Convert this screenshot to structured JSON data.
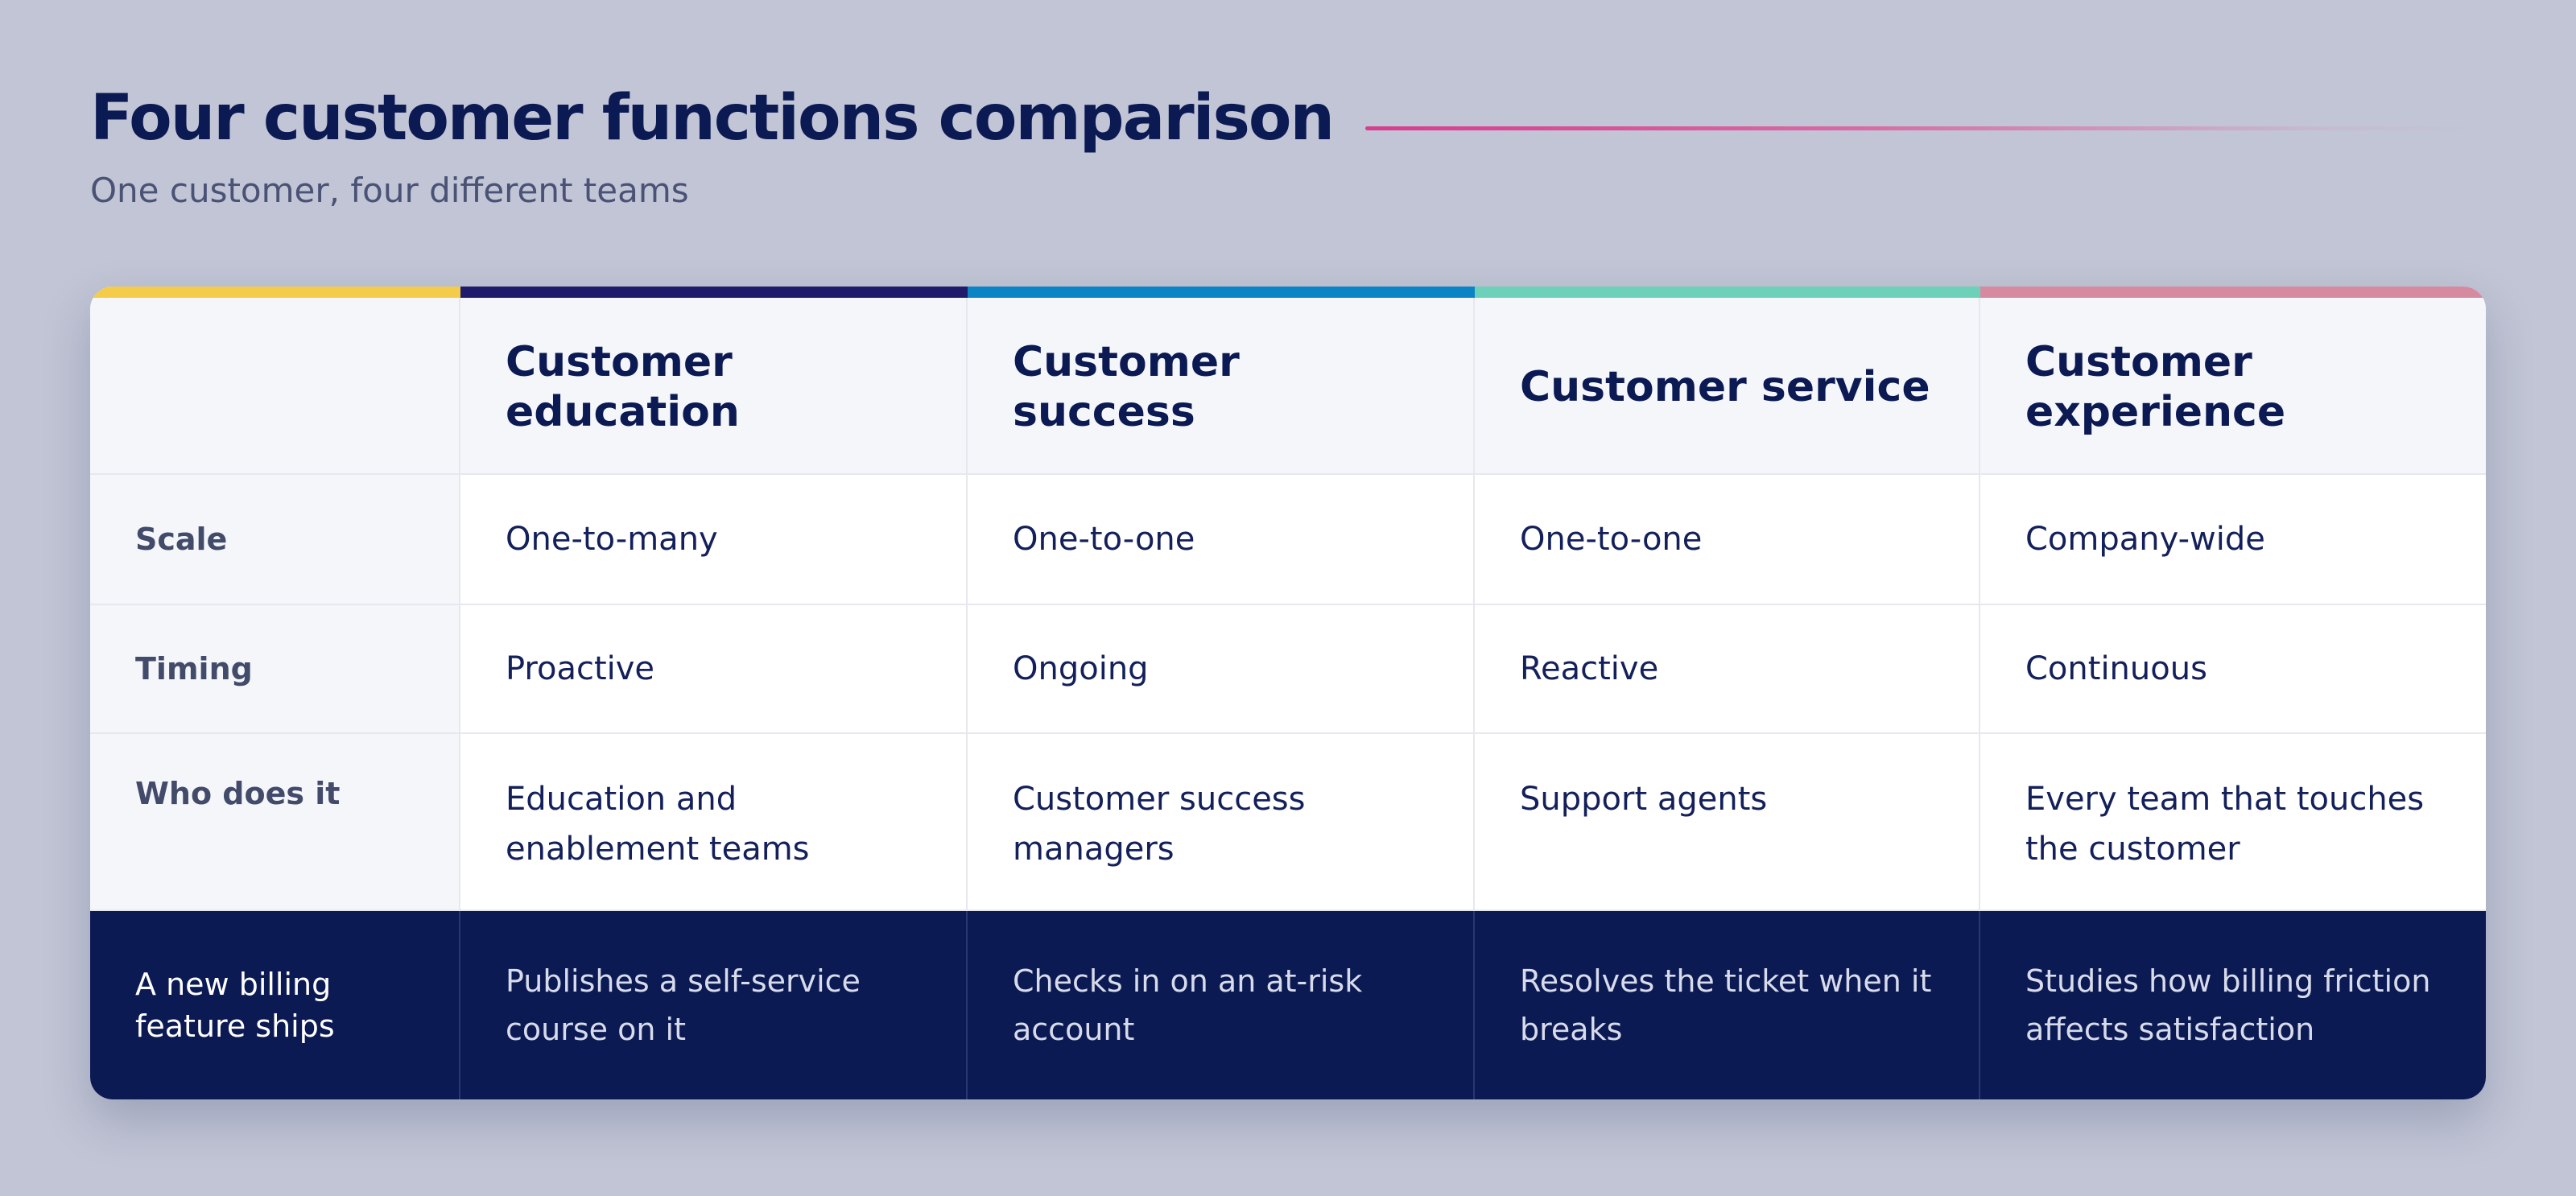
{
  "header": {
    "title": "Four customer functions comparison",
    "subtitle": "One customer, four different teams"
  },
  "colors": {
    "accent_line": "#d83c8e",
    "bar_label_col": "#f5cc4a",
    "bar_education": "#1f1b6b",
    "bar_success": "#0b84c6",
    "bar_service": "#6dd1b9",
    "bar_experience": "#d68aa0",
    "footer_bg": "#0c1a54"
  },
  "table": {
    "columns": [
      "Customer education",
      "Customer success",
      "Customer service",
      "Customer experience"
    ],
    "rows": [
      {
        "label": "Scale",
        "values": [
          "One-to-many",
          "One-to-one",
          "One-to-one",
          "Company-wide"
        ]
      },
      {
        "label": "Timing",
        "values": [
          "Proactive",
          "Ongoing",
          "Reactive",
          "Continuous"
        ]
      },
      {
        "label": "Who does it",
        "values": [
          "Education and enablement teams",
          "Customer success managers",
          "Support agents",
          "Every team that touches the customer"
        ]
      }
    ],
    "example": {
      "label": "A new billing feature ships",
      "values": [
        "Publishes a self-service course on it",
        "Checks in on an at-risk account",
        "Resolves the ticket when it breaks",
        "Studies how billing friction affects satisfaction"
      ]
    }
  }
}
